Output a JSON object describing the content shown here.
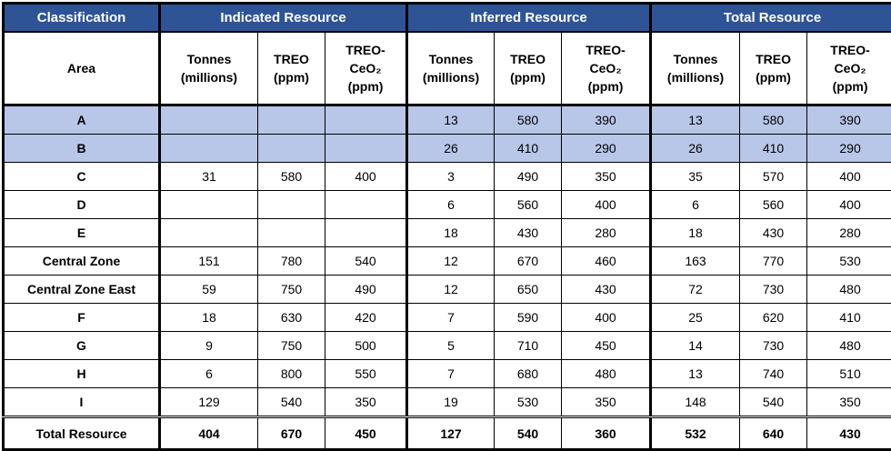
{
  "colors": {
    "header_bg": "#2e5496",
    "header_text": "#ffffff",
    "highlight_row_bg": "#b8c6e8",
    "border": "#000000",
    "body_bg": "#ffffff"
  },
  "chart_data": {
    "type": "table",
    "group_headers": [
      "Classification",
      "Indicated Resource",
      "Inferred Resource",
      "Total Resource"
    ],
    "sub_header_lines": [
      "Area",
      "Tonnes\n(millions)",
      "TREO\n(ppm)",
      "TREO-\nCeO₂\n(ppm)",
      "Tonnes\n(millions)",
      "TREO\n(ppm)",
      "TREO-\nCeO₂\n(ppm)",
      "Tonnes\n(millions)",
      "TREO\n(ppm)",
      "TREO-\nCeO₂\n(ppm)"
    ],
    "rows": [
      {
        "area": "A",
        "highlight": true,
        "is_total": false,
        "indicated": [
          null,
          null,
          null
        ],
        "inferred": [
          13,
          580,
          390
        ],
        "total": [
          13,
          580,
          390
        ]
      },
      {
        "area": "B",
        "highlight": true,
        "is_total": false,
        "indicated": [
          null,
          null,
          null
        ],
        "inferred": [
          26,
          410,
          290
        ],
        "total": [
          26,
          410,
          290
        ]
      },
      {
        "area": "C",
        "highlight": false,
        "is_total": false,
        "indicated": [
          31,
          580,
          400
        ],
        "inferred": [
          3,
          490,
          350
        ],
        "total": [
          35,
          570,
          400
        ]
      },
      {
        "area": "D",
        "highlight": false,
        "is_total": false,
        "indicated": [
          null,
          null,
          null
        ],
        "inferred": [
          6,
          560,
          400
        ],
        "total": [
          6,
          560,
          400
        ]
      },
      {
        "area": "E",
        "highlight": false,
        "is_total": false,
        "indicated": [
          null,
          null,
          null
        ],
        "inferred": [
          18,
          430,
          280
        ],
        "total": [
          18,
          430,
          280
        ]
      },
      {
        "area": "Central Zone",
        "highlight": false,
        "is_total": false,
        "indicated": [
          151,
          780,
          540
        ],
        "inferred": [
          12,
          670,
          460
        ],
        "total": [
          163,
          770,
          530
        ]
      },
      {
        "area": "Central Zone East",
        "highlight": false,
        "is_total": false,
        "indicated": [
          59,
          750,
          490
        ],
        "inferred": [
          12,
          650,
          430
        ],
        "total": [
          72,
          730,
          480
        ]
      },
      {
        "area": "F",
        "highlight": false,
        "is_total": false,
        "indicated": [
          18,
          630,
          420
        ],
        "inferred": [
          7,
          590,
          400
        ],
        "total": [
          25,
          620,
          410
        ]
      },
      {
        "area": "G",
        "highlight": false,
        "is_total": false,
        "indicated": [
          9,
          750,
          500
        ],
        "inferred": [
          5,
          710,
          450
        ],
        "total": [
          14,
          730,
          480
        ]
      },
      {
        "area": "H",
        "highlight": false,
        "is_total": false,
        "indicated": [
          6,
          800,
          550
        ],
        "inferred": [
          7,
          680,
          480
        ],
        "total": [
          13,
          740,
          510
        ]
      },
      {
        "area": "I",
        "highlight": false,
        "is_total": false,
        "indicated": [
          129,
          540,
          350
        ],
        "inferred": [
          19,
          530,
          350
        ],
        "total": [
          148,
          540,
          350
        ]
      },
      {
        "area": "Total Resource",
        "highlight": false,
        "is_total": true,
        "indicated": [
          404,
          670,
          450
        ],
        "inferred": [
          127,
          540,
          360
        ],
        "total": [
          532,
          640,
          430
        ]
      }
    ]
  }
}
